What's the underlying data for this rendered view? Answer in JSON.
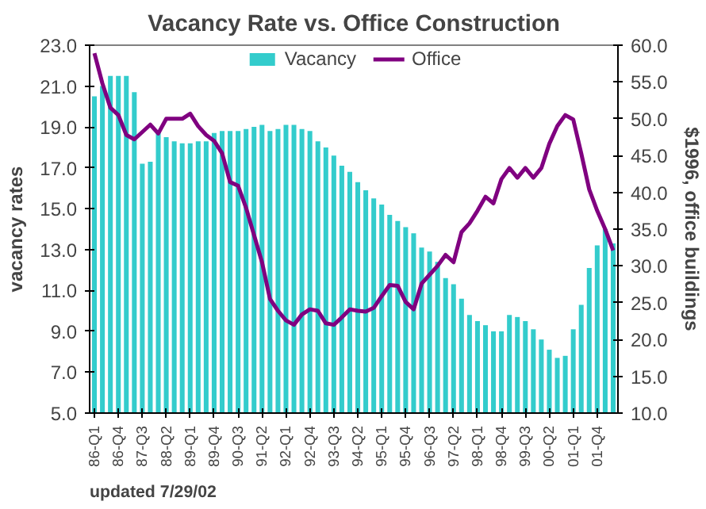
{
  "chart_data": {
    "type": "bar",
    "title": "Vacancy Rate vs. Office Construction",
    "categories": [
      "86-Q1",
      null,
      null,
      "86-Q4",
      null,
      null,
      "87-Q3",
      null,
      null,
      "88-Q2",
      null,
      null,
      "89-Q1",
      null,
      null,
      "89-Q4",
      null,
      null,
      "90-Q3",
      null,
      null,
      "91-Q2",
      null,
      null,
      "92-Q1",
      null,
      null,
      "92-Q4",
      null,
      null,
      "93-Q3",
      null,
      null,
      "94-Q2",
      null,
      null,
      "95-Q1",
      null,
      null,
      "95-Q4",
      null,
      null,
      "96-Q3",
      null,
      null,
      "97-Q2",
      null,
      null,
      "98-Q1",
      null,
      null,
      "98-Q4",
      null,
      null,
      "99-Q3",
      null,
      null,
      "00-Q2",
      null,
      null,
      "01-Q1",
      null,
      null,
      "01-Q4",
      null,
      null
    ],
    "series": [
      {
        "name": "Vacancy",
        "color": "#33cccc",
        "values": [
          20.5,
          21.0,
          21.5,
          21.5,
          21.5,
          20.7,
          17.2,
          17.3,
          18.8,
          18.5,
          18.3,
          18.2,
          18.2,
          18.3,
          18.3,
          18.7,
          18.8,
          18.8,
          18.8,
          18.9,
          19.0,
          19.1,
          18.8,
          18.9,
          19.1,
          19.1,
          18.9,
          18.8,
          18.3,
          18.0,
          17.6,
          17.1,
          16.8,
          16.3,
          15.9,
          15.5,
          15.2,
          14.7,
          14.4,
          14.1,
          13.8,
          13.1,
          12.9,
          12.4,
          11.6,
          11.3,
          10.6,
          9.8,
          9.5,
          9.3,
          9.0,
          9.0,
          9.8,
          9.7,
          9.5,
          9.1,
          8.6,
          8.1,
          7.7,
          7.8,
          9.1,
          10.3,
          12.1,
          13.2,
          14.0,
          13.3
        ]
      },
      {
        "name": "Office",
        "type": "line",
        "axis": "y2",
        "color": "#800080",
        "values": [
          58.9,
          54.8,
          51.5,
          50.5,
          47.8,
          47.2,
          48.2,
          49.2,
          48.0,
          50.0,
          50.0,
          50.0,
          50.7,
          49.0,
          47.8,
          47.0,
          45.3,
          41.4,
          40.9,
          37.9,
          34.2,
          30.5,
          25.5,
          23.9,
          22.6,
          22.0,
          23.4,
          24.1,
          23.9,
          22.2,
          22.0,
          23.0,
          24.1,
          23.9,
          23.8,
          24.3,
          25.9,
          27.4,
          27.3,
          25.1,
          24.1,
          27.6,
          28.8,
          30.0,
          31.5,
          30.5,
          34.6,
          35.8,
          37.5,
          39.4,
          38.5,
          41.8,
          43.3,
          42.0,
          43.3,
          42.0,
          43.3,
          46.6,
          49.0,
          50.5,
          49.9,
          45.3,
          40.4,
          37.5,
          35.0,
          32.1
        ]
      }
    ],
    "ylabel": "vacancy rates",
    "y2label": "$1996, office buildings",
    "ylim": [
      5,
      23
    ],
    "yticks": [
      {
        "value": 5,
        "label": "5.0"
      },
      {
        "value": 7,
        "label": "7.0"
      },
      {
        "value": 9,
        "label": "9.0"
      },
      {
        "value": 11,
        "label": "11.0"
      },
      {
        "value": 13,
        "label": "13.0"
      },
      {
        "value": 15,
        "label": "15.0"
      },
      {
        "value": 17,
        "label": "17.0"
      },
      {
        "value": 19,
        "label": "19.0"
      },
      {
        "value": 21,
        "label": "21.0"
      },
      {
        "value": 23,
        "label": "23.0"
      }
    ],
    "y2lim": [
      10,
      60
    ],
    "y2ticks": [
      {
        "value": 10,
        "label": "10.0"
      },
      {
        "value": 15,
        "label": "15.0"
      },
      {
        "value": 20,
        "label": "20.0"
      },
      {
        "value": 25,
        "label": "25.0"
      },
      {
        "value": 30,
        "label": "30.0"
      },
      {
        "value": 35,
        "label": "35.0"
      },
      {
        "value": 40,
        "label": "40.0"
      },
      {
        "value": 45,
        "label": "45.0"
      },
      {
        "value": 50,
        "label": "50.0"
      },
      {
        "value": 55,
        "label": "55.0"
      },
      {
        "value": 60,
        "label": "60.0"
      }
    ],
    "legend": "top",
    "grid": false,
    "annotations": [
      "updated 7/29/02"
    ]
  }
}
